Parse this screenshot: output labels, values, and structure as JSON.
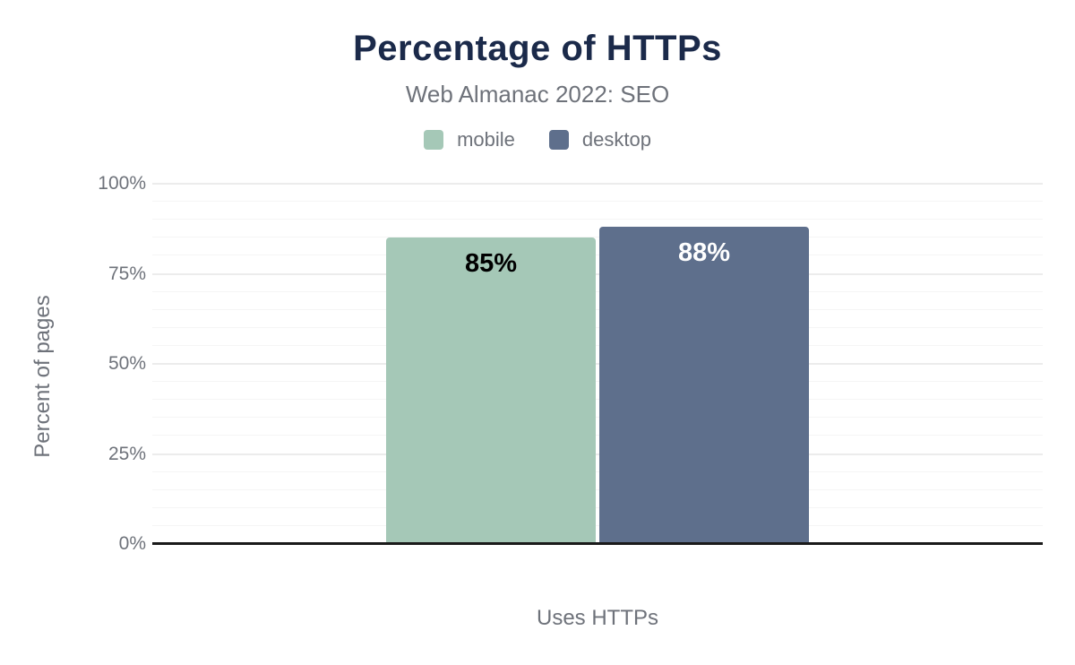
{
  "title": "Percentage of HTTPs",
  "subtitle": "Web Almanac 2022: SEO",
  "legend": [
    {
      "label": "mobile",
      "color": "#a5c8b7"
    },
    {
      "label": "desktop",
      "color": "#5e6f8c"
    }
  ],
  "chart_data": {
    "type": "bar",
    "title": "Percentage of HTTPs",
    "subtitle": "Web Almanac 2022: SEO",
    "categories": [
      "Uses HTTPs"
    ],
    "series": [
      {
        "name": "mobile",
        "values": [
          85
        ],
        "color": "#a5c8b7",
        "label_color": "#000000"
      },
      {
        "name": "desktop",
        "values": [
          88
        ],
        "color": "#5e6f8c",
        "label_color": "#ffffff"
      }
    ],
    "value_labels": [
      "85%",
      "88%"
    ],
    "xlabel": "Uses HTTPs",
    "ylabel": "Percent of pages",
    "ylim": [
      0,
      100
    ],
    "yticks": [
      "0%",
      "25%",
      "50%",
      "75%",
      "100%"
    ],
    "grid": {
      "major_step": 25,
      "minor_step": 5,
      "major_color": "#ececec",
      "minor_color": "#f5f5f5"
    },
    "legend_position": "top",
    "axis_line_color": "#1a1a1a"
  },
  "colors": {
    "title": "#1b2a4a",
    "text_gray": "#6e727a",
    "background": "#ffffff"
  }
}
